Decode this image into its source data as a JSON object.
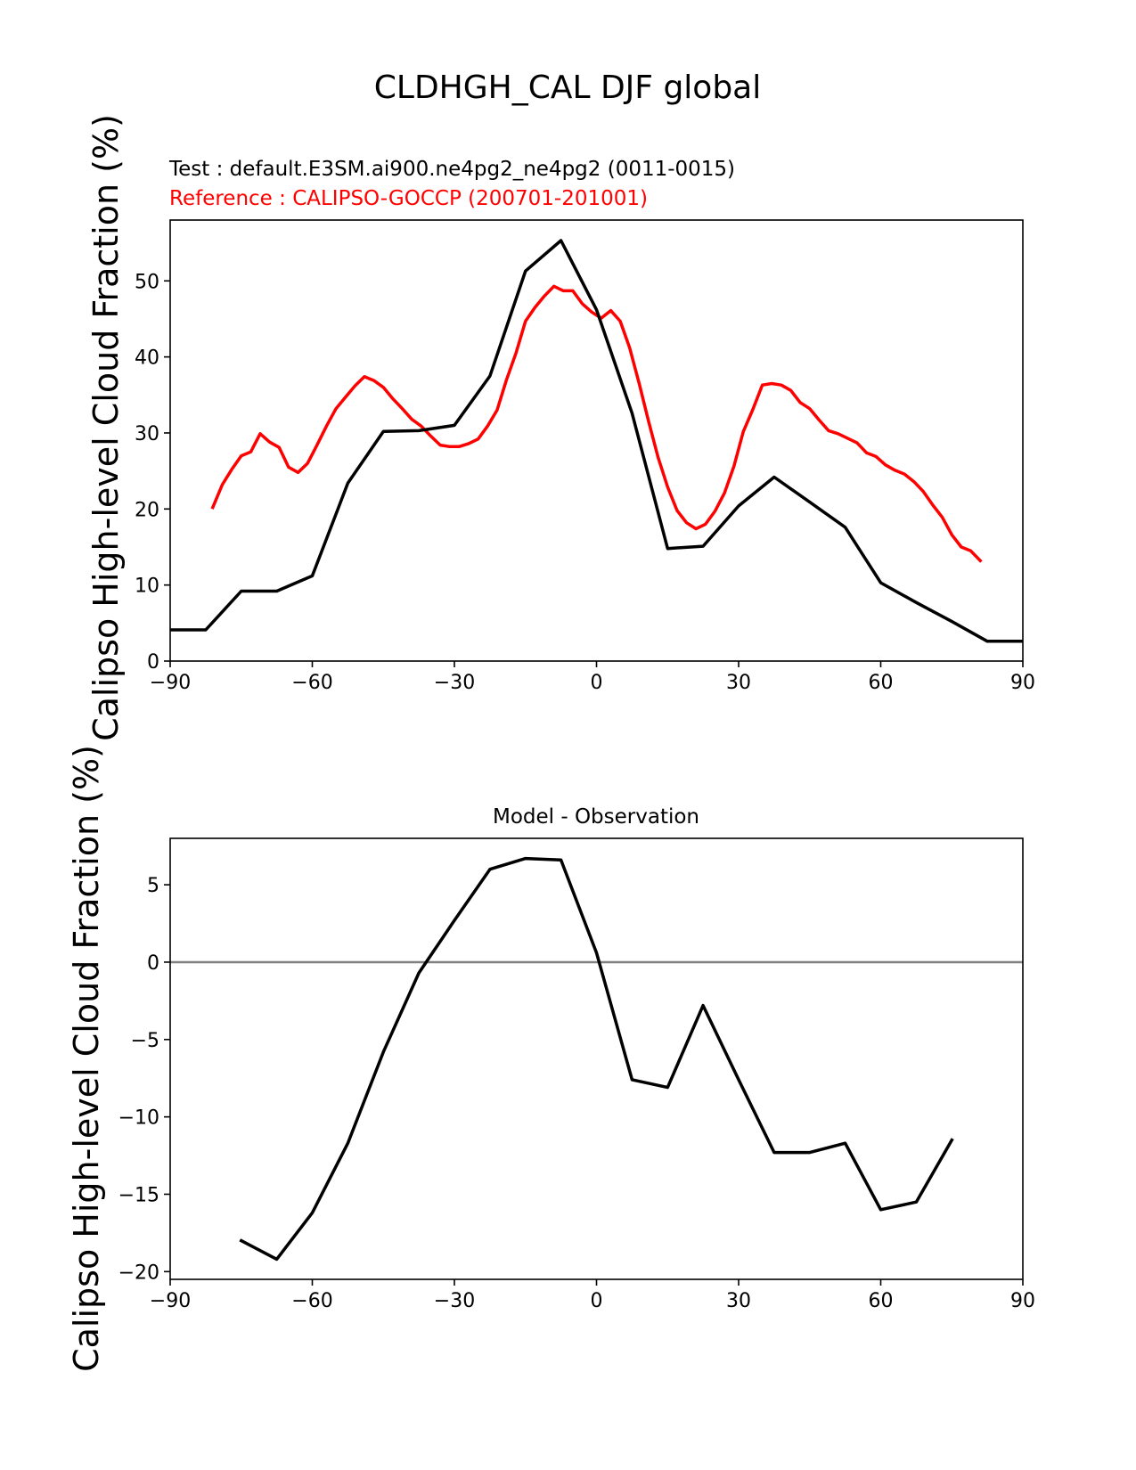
{
  "title": "CLDHGH_CAL DJF global",
  "chart_data": [
    {
      "type": "line",
      "title": "",
      "test_label": "Test : default.E3SM.ai900.ne4pg2_ne4pg2 (0011-0015)",
      "reference_label": "Reference : CALIPSO-GOCCP (200701-201001)",
      "xlabel": "",
      "ylabel": "Calipso High-level Cloud Fraction (%)",
      "xlim": [
        -90,
        90
      ],
      "ylim": [
        0,
        58
      ],
      "xticks": [
        -90,
        -60,
        -30,
        0,
        30,
        60,
        90
      ],
      "xtick_labels": [
        "−90",
        "−60",
        "−30",
        "0",
        "30",
        "60",
        "90"
      ],
      "yticks": [
        0,
        10,
        20,
        30,
        40,
        50
      ],
      "ytick_labels": [
        "0",
        "10",
        "20",
        "30",
        "40",
        "50"
      ],
      "series": [
        {
          "color": "#ff0000",
          "x": [
            -81,
            -79,
            -77,
            -75,
            -73,
            -71,
            -69,
            -67,
            -65,
            -63,
            -61,
            -59,
            -57,
            -55,
            -53,
            -51,
            -49,
            -47,
            -45,
            -43,
            -41,
            -39,
            -37,
            -35,
            -33,
            -31,
            -29,
            -27,
            -25,
            -23,
            -21,
            -19,
            -17,
            -15,
            -13,
            -11,
            -9,
            -7,
            -5,
            -3,
            -1,
            1,
            3,
            5,
            7,
            9,
            11,
            13,
            15,
            17,
            19,
            21,
            23,
            25,
            27,
            29,
            31,
            33,
            35,
            37,
            39,
            41,
            43,
            45,
            47,
            49,
            51,
            53,
            55,
            57,
            59,
            61,
            63,
            65,
            67,
            69,
            71,
            73,
            75,
            77,
            79,
            81
          ],
          "y": [
            20.2,
            23.2,
            25.2,
            27.0,
            27.5,
            29.9,
            28.8,
            28.1,
            25.5,
            24.8,
            26.0,
            28.4,
            30.9,
            33.2,
            34.7,
            36.2,
            37.4,
            36.9,
            36.0,
            34.5,
            33.2,
            31.8,
            30.9,
            29.6,
            28.4,
            28.2,
            28.2,
            28.6,
            29.2,
            30.9,
            33.0,
            37.0,
            40.5,
            44.7,
            46.5,
            48.0,
            49.3,
            48.7,
            48.7,
            47.0,
            45.9,
            45.1,
            46.1,
            44.7,
            41.2,
            36.5,
            31.5,
            26.8,
            22.9,
            19.8,
            18.2,
            17.4,
            18.0,
            19.7,
            22.1,
            25.6,
            30.2,
            33.1,
            36.3,
            36.5,
            36.3,
            35.6,
            34.0,
            33.2,
            31.7,
            30.3,
            29.9,
            29.3,
            28.7,
            27.4,
            26.9,
            25.8,
            25.1,
            24.6,
            23.6,
            22.3,
            20.5,
            18.9,
            16.6,
            15.0,
            14.5,
            13.2
          ]
        },
        {
          "color": "#000000",
          "x": [
            -90,
            -82.5,
            -75,
            -67.5,
            -60,
            -52.5,
            -45,
            -37.5,
            -30,
            -22.5,
            -15,
            -7.5,
            0,
            7.5,
            15,
            22.5,
            30,
            37.5,
            45,
            52.5,
            60,
            67.5,
            75,
            82.5,
            90
          ],
          "y": [
            4.1,
            4.1,
            9.2,
            9.2,
            11.2,
            23.4,
            30.2,
            30.3,
            31.0,
            37.5,
            51.3,
            55.3,
            46.2,
            32.6,
            14.8,
            15.1,
            20.4,
            24.2,
            20.9,
            17.6,
            10.3,
            7.7,
            5.2,
            2.6,
            2.6
          ]
        }
      ]
    },
    {
      "type": "line",
      "title": "Model - Observation",
      "xlabel": "",
      "ylabel": "Calipso High-level Cloud Fraction (%)",
      "xlim": [
        -90,
        90
      ],
      "ylim": [
        -20.5,
        8
      ],
      "xticks": [
        -90,
        -60,
        -30,
        0,
        30,
        60,
        90
      ],
      "xtick_labels": [
        "−90",
        "−60",
        "−30",
        "0",
        "30",
        "60",
        "90"
      ],
      "yticks": [
        -20,
        -15,
        -10,
        -5,
        0,
        5
      ],
      "ytick_labels": [
        "−20",
        "−15",
        "−10",
        "−5",
        "0",
        "5"
      ],
      "zero_line_color": "#808080",
      "series": [
        {
          "color": "#000000",
          "x": [
            -75,
            -67.5,
            -60,
            -52.5,
            -45,
            -37.5,
            -30,
            -22.5,
            -15,
            -7.5,
            0,
            7.5,
            15,
            22.5,
            30,
            37.5,
            45,
            52.5,
            60,
            67.5,
            75
          ],
          "y": [
            -18.0,
            -19.2,
            -16.2,
            -11.7,
            -5.8,
            -0.7,
            2.7,
            6.0,
            6.7,
            6.6,
            0.6,
            -7.6,
            -8.1,
            -2.8,
            -7.6,
            -12.3,
            -12.3,
            -11.7,
            -16.0,
            -15.5,
            -11.5
          ]
        }
      ]
    }
  ]
}
